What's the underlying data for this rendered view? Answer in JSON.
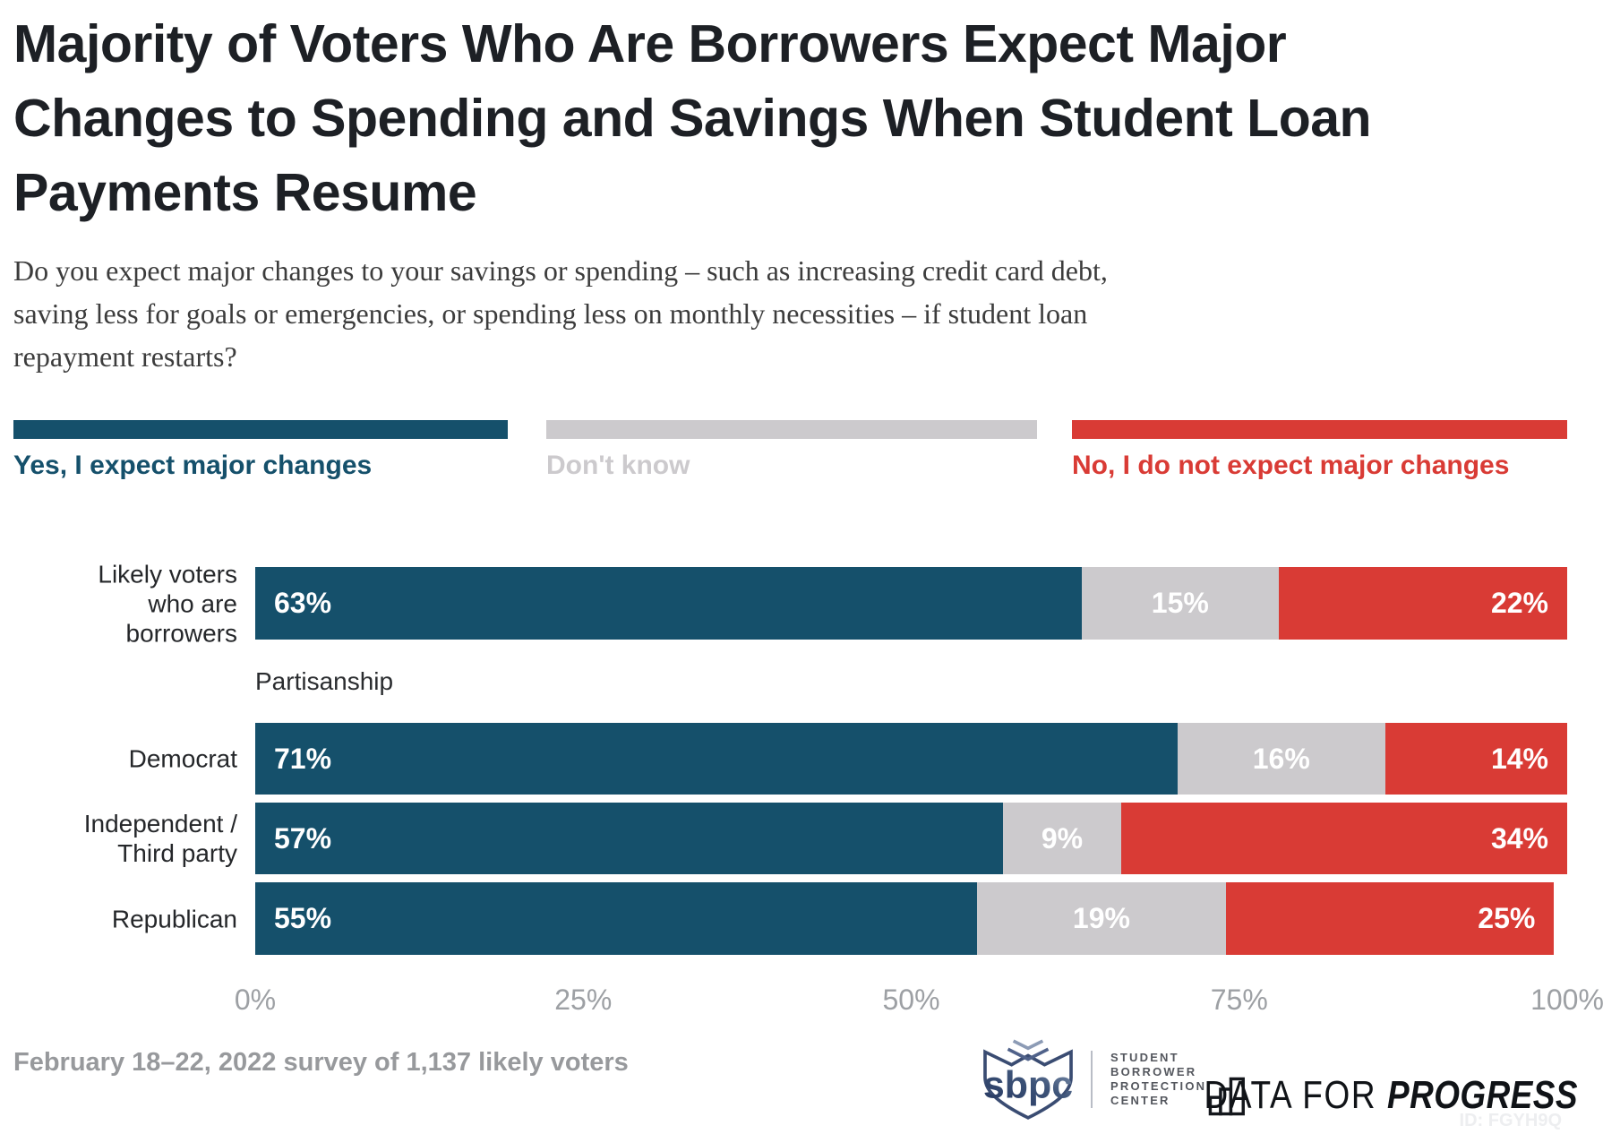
{
  "title_lines": [
    "Majority of Voters Who Are Borrowers Expect Major",
    "Changes to Spending and Savings When Student Loan",
    "Payments Resume"
  ],
  "subtitle_lines": [
    "Do you expect major changes to your savings or spending – such as increasing credit card debt,",
    "saving less for goals or emergencies, or spending less on monthly necessities – if student loan",
    "repayment restarts?"
  ],
  "legend": {
    "items": [
      {
        "label": "Yes, I expect major changes",
        "color": "#15506B"
      },
      {
        "label": "Don't know",
        "color": "#CCCACD"
      },
      {
        "label": "No, I do not expect major changes",
        "color": "#D93B35"
      }
    ]
  },
  "chart_data": {
    "type": "bar",
    "stacked": true,
    "orientation": "horizontal",
    "categories": [
      "Likely voters who are borrowers",
      "Democrat",
      "Independent / Third party",
      "Republican"
    ],
    "category_label_lines": [
      [
        "Likely voters",
        "who are",
        "borrowers"
      ],
      [
        "Democrat"
      ],
      [
        "Independent /",
        "Third party"
      ],
      [
        "Republican"
      ]
    ],
    "section_label": "Partisanship",
    "series": [
      {
        "name": "Yes, I expect major changes",
        "color": "#15506B",
        "values": [
          63,
          71,
          57,
          55
        ]
      },
      {
        "name": "Don't know",
        "color": "#CCCACD",
        "values": [
          15,
          16,
          9,
          19
        ]
      },
      {
        "name": "No, I do not expect major changes",
        "color": "#D93B35",
        "values": [
          22,
          14,
          34,
          25
        ]
      }
    ],
    "value_suffix": "%",
    "x_ticks": [
      "0%",
      "25%",
      "50%",
      "75%",
      "100%"
    ],
    "xlim": [
      0,
      100
    ],
    "legend_position": "top",
    "grid": false
  },
  "footer": {
    "note": "February 18–22, 2022 survey of 1,137 likely voters",
    "sbpc": {
      "acronym": "sbpc",
      "name_lines": [
        "STUDENT",
        "BORROWER",
        "PROTECTION",
        "CENTER"
      ]
    },
    "dfp": {
      "prefix": "DATA FOR",
      "bold": "PROGRESS"
    },
    "chart_id": "ID: FGYH9Q"
  }
}
